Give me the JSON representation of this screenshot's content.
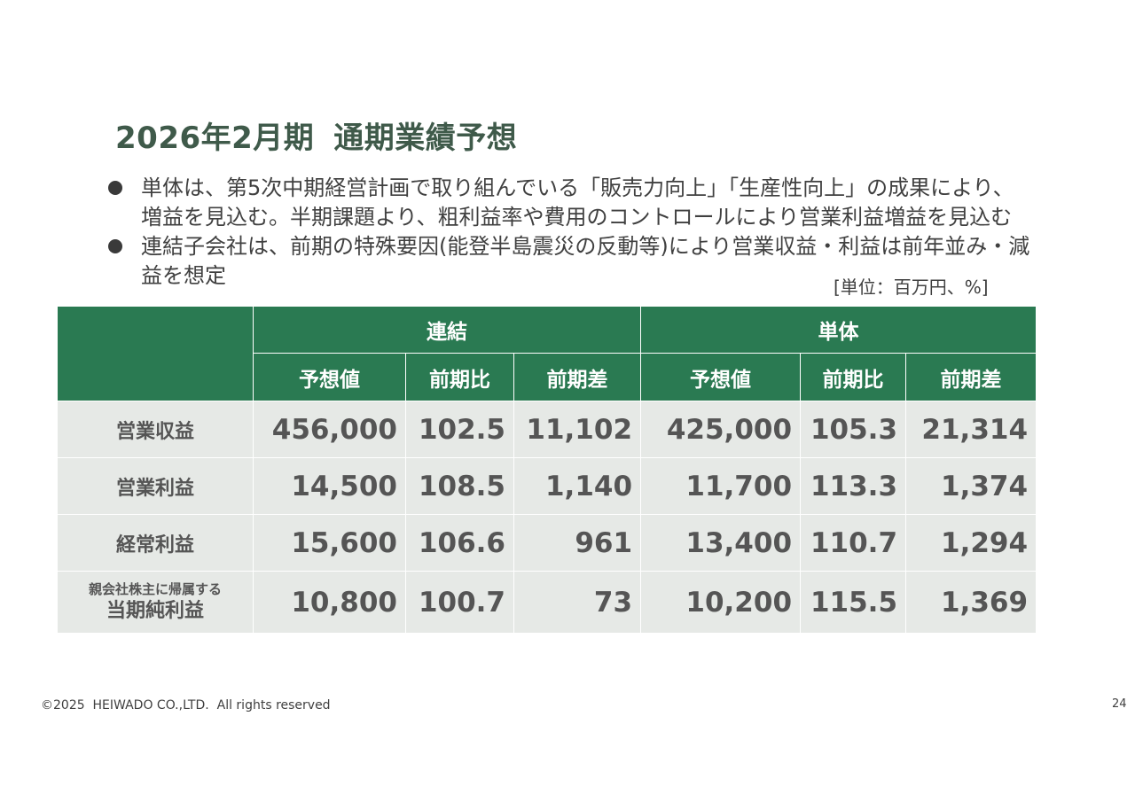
{
  "slide": {
    "title_period": "2026年2月期",
    "title_main": "通期業績予想",
    "bullets": [
      "単体は、第5次中期経営計画で取り組んでいる「販売力向上」「生産性向上」の成果により、増益を見込む。半期課題より、粗利益率や費用のコントロールにより営業利益増益を見込む",
      "連結子会社は、前期の特殊要因(能登半島震災の反動等)により営業収益・利益は前年並み・減益を想定"
    ],
    "unit_note": "[単位：百万円、%]"
  },
  "table": {
    "group_headers": [
      "連結",
      "単体"
    ],
    "sub_headers": [
      "予想値",
      "前期比",
      "前期差",
      "予想値",
      "前期比",
      "前期差"
    ],
    "rows": [
      {
        "label": "営業収益",
        "cells": [
          "456,000",
          "102.5",
          "11,102",
          "425,000",
          "105.3",
          "21,314"
        ]
      },
      {
        "label": "営業利益",
        "cells": [
          "14,500",
          "108.5",
          "1,140",
          "11,700",
          "113.3",
          "1,374"
        ]
      },
      {
        "label": "経常利益",
        "cells": [
          "15,600",
          "106.6",
          "961",
          "13,400",
          "110.7",
          "1,294"
        ]
      },
      {
        "label_small": "親会社株主に帰属する",
        "label": "当期純利益",
        "cells": [
          "10,800",
          "100.7",
          "73",
          "10,200",
          "115.5",
          "1,369"
        ]
      }
    ]
  },
  "footer": {
    "copyright": "©2025  HEIWADO CO.,LTD.  All rights reserved",
    "page_number": "24"
  },
  "colors": {
    "header_green": "#2a7a52",
    "title_green": "#3f5a4a",
    "row_gray": "#e6e9e6"
  }
}
